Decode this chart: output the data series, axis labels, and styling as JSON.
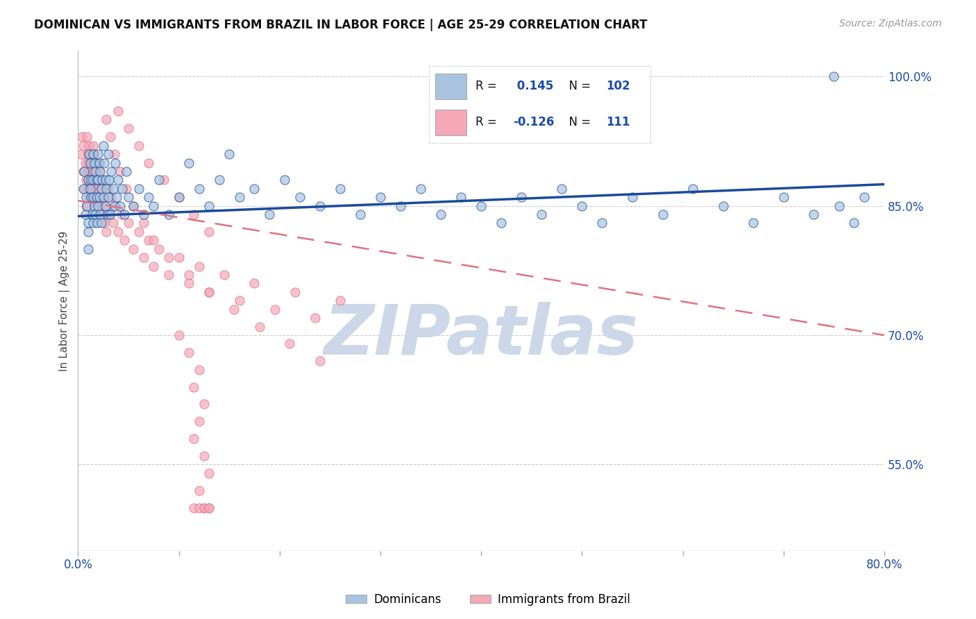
{
  "title": "DOMINICAN VS IMMIGRANTS FROM BRAZIL IN LABOR FORCE | AGE 25-29 CORRELATION CHART",
  "source": "Source: ZipAtlas.com",
  "ylabel": "In Labor Force | Age 25-29",
  "xlim": [
    0.0,
    0.8
  ],
  "ylim": [
    0.45,
    1.03
  ],
  "ytick_labels_right": [
    "100.0%",
    "85.0%",
    "70.0%",
    "55.0%"
  ],
  "ytick_vals_right": [
    1.0,
    0.85,
    0.7,
    0.55
  ],
  "blue_R": 0.145,
  "blue_N": 102,
  "pink_R": -0.126,
  "pink_N": 111,
  "blue_color": "#a8c4e0",
  "pink_color": "#f4a8b8",
  "blue_line_color": "#1a4a9b",
  "pink_line_color": "#e07080",
  "watermark": "ZIPatlas",
  "watermark_color": "#ccd8e8",
  "legend_blue_label": "Dominicans",
  "legend_pink_label": "Immigrants from Brazil",
  "blue_scatter_x": [
    0.005,
    0.006,
    0.007,
    0.008,
    0.009,
    0.01,
    0.01,
    0.01,
    0.01,
    0.011,
    0.012,
    0.012,
    0.013,
    0.013,
    0.014,
    0.015,
    0.015,
    0.015,
    0.015,
    0.016,
    0.016,
    0.017,
    0.017,
    0.018,
    0.018,
    0.019,
    0.02,
    0.02,
    0.02,
    0.021,
    0.021,
    0.022,
    0.022,
    0.023,
    0.023,
    0.024,
    0.025,
    0.025,
    0.026,
    0.027,
    0.027,
    0.028,
    0.029,
    0.03,
    0.03,
    0.031,
    0.032,
    0.033,
    0.035,
    0.036,
    0.037,
    0.038,
    0.04,
    0.042,
    0.044,
    0.046,
    0.048,
    0.05,
    0.055,
    0.06,
    0.065,
    0.07,
    0.075,
    0.08,
    0.09,
    0.1,
    0.11,
    0.12,
    0.13,
    0.14,
    0.15,
    0.16,
    0.175,
    0.19,
    0.205,
    0.22,
    0.24,
    0.26,
    0.28,
    0.3,
    0.32,
    0.34,
    0.36,
    0.38,
    0.4,
    0.42,
    0.44,
    0.46,
    0.48,
    0.5,
    0.52,
    0.55,
    0.58,
    0.61,
    0.64,
    0.67,
    0.7,
    0.73,
    0.755,
    0.77,
    0.78,
    0.75
  ],
  "blue_scatter_y": [
    0.87,
    0.89,
    0.84,
    0.86,
    0.85,
    0.88,
    0.83,
    0.82,
    0.8,
    0.91,
    0.87,
    0.9,
    0.86,
    0.88,
    0.84,
    0.91,
    0.88,
    0.86,
    0.83,
    0.9,
    0.85,
    0.89,
    0.84,
    0.88,
    0.86,
    0.83,
    0.91,
    0.88,
    0.85,
    0.9,
    0.86,
    0.89,
    0.84,
    0.87,
    0.83,
    0.88,
    0.92,
    0.86,
    0.9,
    0.88,
    0.85,
    0.87,
    0.84,
    0.91,
    0.86,
    0.88,
    0.84,
    0.89,
    0.87,
    0.85,
    0.9,
    0.86,
    0.88,
    0.85,
    0.87,
    0.84,
    0.89,
    0.86,
    0.85,
    0.87,
    0.84,
    0.86,
    0.85,
    0.88,
    0.84,
    0.86,
    0.9,
    0.87,
    0.85,
    0.88,
    0.91,
    0.86,
    0.87,
    0.84,
    0.88,
    0.86,
    0.85,
    0.87,
    0.84,
    0.86,
    0.85,
    0.87,
    0.84,
    0.86,
    0.85,
    0.83,
    0.86,
    0.84,
    0.87,
    0.85,
    0.83,
    0.86,
    0.84,
    0.87,
    0.85,
    0.83,
    0.86,
    0.84,
    0.85,
    0.83,
    0.86,
    1.0
  ],
  "pink_scatter_x": [
    0.003,
    0.004,
    0.005,
    0.005,
    0.006,
    0.007,
    0.008,
    0.008,
    0.009,
    0.01,
    0.01,
    0.01,
    0.01,
    0.01,
    0.011,
    0.011,
    0.012,
    0.012,
    0.013,
    0.013,
    0.014,
    0.014,
    0.015,
    0.015,
    0.015,
    0.016,
    0.016,
    0.017,
    0.017,
    0.018,
    0.018,
    0.019,
    0.019,
    0.02,
    0.02,
    0.021,
    0.021,
    0.022,
    0.022,
    0.023,
    0.024,
    0.025,
    0.026,
    0.027,
    0.028,
    0.03,
    0.031,
    0.033,
    0.035,
    0.037,
    0.04,
    0.043,
    0.046,
    0.05,
    0.055,
    0.06,
    0.065,
    0.07,
    0.075,
    0.08,
    0.09,
    0.1,
    0.11,
    0.12,
    0.13,
    0.145,
    0.16,
    0.175,
    0.195,
    0.215,
    0.235,
    0.26,
    0.028,
    0.032,
    0.036,
    0.042,
    0.048,
    0.055,
    0.065,
    0.075,
    0.09,
    0.11,
    0.13,
    0.155,
    0.18,
    0.21,
    0.24,
    0.04,
    0.05,
    0.06,
    0.07,
    0.085,
    0.1,
    0.115,
    0.13,
    0.1,
    0.11,
    0.12,
    0.115,
    0.125,
    0.12,
    0.115,
    0.125,
    0.13,
    0.12,
    0.125,
    0.13,
    0.115,
    0.12,
    0.125,
    0.13
  ],
  "pink_scatter_y": [
    0.91,
    0.93,
    0.89,
    0.92,
    0.87,
    0.9,
    0.88,
    0.85,
    0.93,
    0.91,
    0.9,
    0.89,
    0.88,
    0.87,
    0.92,
    0.86,
    0.91,
    0.88,
    0.89,
    0.86,
    0.9,
    0.87,
    0.92,
    0.89,
    0.86,
    0.91,
    0.88,
    0.9,
    0.87,
    0.89,
    0.86,
    0.88,
    0.85,
    0.9,
    0.87,
    0.89,
    0.86,
    0.88,
    0.85,
    0.87,
    0.84,
    0.86,
    0.83,
    0.85,
    0.82,
    0.87,
    0.84,
    0.86,
    0.83,
    0.85,
    0.82,
    0.84,
    0.81,
    0.83,
    0.8,
    0.82,
    0.79,
    0.81,
    0.78,
    0.8,
    0.77,
    0.79,
    0.76,
    0.78,
    0.75,
    0.77,
    0.74,
    0.76,
    0.73,
    0.75,
    0.72,
    0.74,
    0.95,
    0.93,
    0.91,
    0.89,
    0.87,
    0.85,
    0.83,
    0.81,
    0.79,
    0.77,
    0.75,
    0.73,
    0.71,
    0.69,
    0.67,
    0.96,
    0.94,
    0.92,
    0.9,
    0.88,
    0.86,
    0.84,
    0.82,
    0.7,
    0.68,
    0.66,
    0.64,
    0.62,
    0.6,
    0.58,
    0.56,
    0.54,
    0.52,
    0.5,
    0.5,
    0.5,
    0.5,
    0.5,
    0.5
  ]
}
